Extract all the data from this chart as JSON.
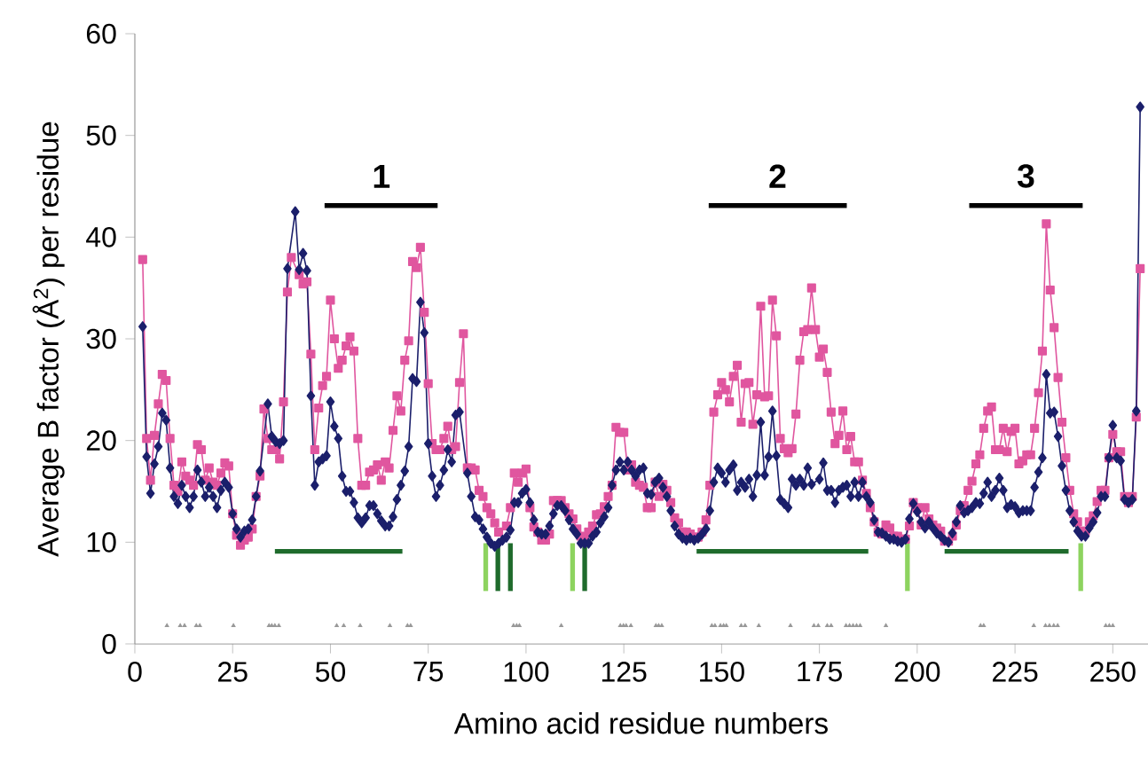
{
  "chart_data": {
    "type": "line",
    "xlabel": "Amino acid residue numbers",
    "ylabel": "Average B factor (Å$^{2}$) per residue",
    "xlim": [
      0,
      259
    ],
    "ylim": [
      0,
      60
    ],
    "xticks": [
      0,
      25,
      50,
      75,
      100,
      125,
      150,
      175,
      200,
      225,
      250
    ],
    "yticks": [
      0,
      10,
      20,
      30,
      40,
      50,
      60
    ],
    "grid": false,
    "annotations": [
      {
        "text": "1",
        "x": 63,
        "y": 43.1
      },
      {
        "text": "2",
        "x": 164.3,
        "y": 43.1
      },
      {
        "text": "3",
        "x": 227.8,
        "y": 43.1
      }
    ],
    "series": [
      {
        "color": "#e0569f",
        "marker": "square",
        "x": [
          2,
          3,
          4,
          5,
          6,
          7,
          8,
          9,
          10,
          11,
          12,
          13,
          14,
          15,
          16,
          17,
          18,
          19,
          20,
          21,
          22,
          23,
          24,
          25,
          26,
          27,
          28,
          29,
          30,
          31,
          32,
          33,
          34,
          35,
          36,
          37,
          38,
          39,
          40,
          42,
          43,
          44,
          45,
          46,
          47,
          48,
          49,
          50,
          51,
          52,
          53,
          54,
          55,
          56,
          57,
          58,
          59,
          60,
          61,
          62,
          63,
          64,
          65,
          66,
          67,
          68,
          69,
          70,
          71,
          72,
          73,
          74,
          75,
          76,
          77,
          78,
          79,
          80,
          81,
          82,
          83,
          84,
          85,
          86,
          87,
          88,
          89,
          90,
          91,
          92,
          93,
          95,
          96,
          97,
          98,
          99,
          100,
          101,
          102,
          103,
          104,
          105,
          106,
          107,
          108,
          109,
          110,
          111,
          112,
          113,
          114,
          115,
          116,
          117,
          118,
          119,
          120,
          121,
          122,
          123,
          124,
          125,
          126,
          127,
          128,
          129,
          130,
          131,
          132,
          133,
          134,
          135,
          136,
          137,
          138,
          139,
          140,
          141,
          142,
          143,
          144,
          145,
          146,
          147,
          148,
          149,
          150,
          151,
          152,
          153,
          154,
          155,
          156,
          157,
          158,
          159,
          160,
          161,
          162,
          163,
          164,
          165,
          166,
          167,
          168,
          169,
          170,
          171,
          172,
          173,
          174,
          175,
          176,
          177,
          178,
          179,
          180,
          181,
          182,
          183,
          184,
          185,
          186,
          187,
          188,
          189,
          190,
          191,
          192,
          193,
          194,
          195,
          196,
          197,
          198,
          199,
          200,
          201,
          202,
          203,
          204,
          205,
          206,
          207,
          208,
          209,
          210,
          211,
          212,
          213,
          214,
          215,
          216,
          217,
          218,
          219,
          220,
          221,
          222,
          223,
          224,
          225,
          226,
          227,
          228,
          229,
          230,
          231,
          232,
          233,
          234,
          235,
          236,
          237,
          238,
          239,
          240,
          241,
          242,
          243,
          244,
          245,
          246,
          247,
          248,
          249,
          250,
          251,
          252,
          253,
          254,
          255,
          256,
          257
        ],
        "values": [
          37.8,
          20.2,
          16.1,
          20.5,
          23.6,
          26.5,
          25.9,
          20.2,
          15.6,
          15.0,
          17.9,
          16.5,
          16.1,
          15.6,
          19.6,
          19.1,
          16.1,
          17.3,
          15.9,
          15.6,
          16.8,
          17.8,
          17.5,
          12.8,
          10.7,
          9.7,
          10.2,
          10.5,
          11.3,
          14.5,
          16.5,
          23.1,
          20.2,
          19.1,
          19.1,
          18.2,
          23.8,
          34.6,
          38.0,
          36.3,
          35.4,
          35.6,
          28.5,
          19.1,
          23.2,
          25.4,
          26.3,
          33.8,
          30.0,
          27.1,
          27.9,
          29.3,
          30.2,
          28.8,
          20.2,
          15.6,
          15.6,
          16.9,
          17.1,
          17.6,
          16.1,
          17.9,
          17.3,
          21.0,
          24.4,
          22.9,
          27.9,
          29.8,
          37.6,
          37.0,
          39.0,
          32.6,
          25.6,
          19.7,
          19.1,
          19.1,
          20.2,
          21.4,
          19.1,
          19.4,
          25.7,
          30.5,
          17.3,
          17.3,
          17.1,
          15.1,
          14.5,
          13.4,
          12.8,
          11.9,
          11.0,
          11.6,
          13.4,
          16.8,
          15.9,
          16.8,
          17.2,
          13.4,
          11.5,
          11.0,
          10.2,
          10.2,
          10.8,
          14.1,
          14.1,
          14.1,
          13.4,
          12.8,
          12.3,
          11.3,
          10.6,
          10.2,
          11.0,
          11.6,
          12.7,
          12.8,
          13.5,
          14.5,
          15.6,
          21.3,
          20.8,
          20.8,
          17.1,
          17.6,
          15.9,
          15.6,
          15.4,
          13.4,
          13.4,
          15.9,
          14.5,
          15.7,
          15.1,
          13.9,
          12.4,
          11.9,
          11.0,
          11.0,
          10.8,
          10.5,
          10.5,
          11.0,
          12.2,
          15.6,
          22.8,
          24.5,
          25.7,
          25.0,
          23.8,
          26.3,
          27.4,
          21.8,
          25.6,
          25.7,
          21.6,
          24.5,
          33.2,
          24.3,
          24.4,
          33.8,
          30.3,
          20.2,
          19.2,
          18.8,
          19.2,
          22.6,
          27.9,
          30.7,
          30.9,
          35.0,
          30.9,
          28.2,
          29.0,
          26.7,
          22.8,
          19.7,
          20.5,
          22.9,
          19.1,
          20.4,
          17.9,
          17.9,
          16.1,
          14.8,
          13.4,
          12.0,
          11.0,
          10.8,
          11.7,
          11.4,
          10.6,
          10.6,
          10.3,
          10.3,
          11.6,
          13.9,
          13.4,
          11.7,
          13.4,
          12.3,
          11.7,
          11.4,
          11.1,
          10.1,
          10.1,
          10.6,
          11.7,
          13.1,
          13.6,
          15.1,
          16.0,
          17.7,
          18.6,
          21.2,
          22.9,
          23.3,
          19.1,
          19.1,
          21.2,
          18.9,
          20.9,
          21.2,
          17.7,
          18.0,
          18.6,
          18.6,
          21.2,
          24.7,
          28.8,
          41.3,
          34.8,
          31.1,
          26.2,
          21.8,
          18.3,
          15.1,
          12.8,
          12.0,
          11.1,
          11.1,
          12.0,
          12.6,
          14.0,
          15.1,
          15.1,
          18.3,
          20.6,
          18.9,
          18.9,
          14.5,
          13.9,
          14.5,
          22.3,
          36.9
        ]
      },
      {
        "color": "#1b1f6b",
        "marker": "diamond",
        "x": [
          2,
          3,
          4,
          5,
          6,
          7,
          8,
          9,
          10,
          11,
          12,
          13,
          14,
          15,
          16,
          17,
          18,
          19,
          20,
          21,
          22,
          23,
          24,
          25,
          26,
          27,
          28,
          29,
          30,
          31,
          32,
          34,
          35,
          36,
          37,
          38,
          39,
          41,
          42,
          43,
          44,
          45,
          46,
          47,
          48,
          49,
          50,
          51,
          52,
          53,
          54,
          55,
          56,
          57,
          58,
          59,
          60,
          61,
          62,
          63,
          64,
          65,
          66,
          67,
          68,
          69,
          70,
          71,
          72,
          73,
          74,
          75,
          76,
          77,
          78,
          79,
          80,
          81,
          82,
          83,
          85,
          86,
          87,
          88,
          89,
          90,
          91,
          92,
          93,
          94,
          95,
          96,
          97,
          98,
          99,
          100,
          101,
          102,
          103,
          104,
          105,
          106,
          107,
          108,
          109,
          110,
          111,
          112,
          113,
          114,
          115,
          116,
          117,
          118,
          119,
          120,
          121,
          122,
          123,
          124,
          125,
          126,
          127,
          128,
          129,
          130,
          131,
          132,
          133,
          134,
          135,
          136,
          137,
          138,
          139,
          140,
          141,
          142,
          143,
          144,
          145,
          146,
          147,
          148,
          149,
          150,
          151,
          152,
          153,
          154,
          155,
          156,
          157,
          158,
          159,
          160,
          161,
          162,
          163,
          164,
          165,
          166,
          167,
          168,
          169,
          170,
          171,
          172,
          173,
          175,
          176,
          177,
          178,
          179,
          180,
          181,
          182,
          183,
          184,
          185,
          186,
          187,
          188,
          189,
          190,
          191,
          192,
          193,
          194,
          195,
          196,
          197,
          198,
          199,
          200,
          201,
          202,
          203,
          204,
          205,
          206,
          207,
          208,
          209,
          210,
          211,
          212,
          213,
          214,
          215,
          216,
          217,
          218,
          219,
          220,
          221,
          222,
          223,
          224,
          225,
          226,
          227,
          228,
          229,
          230,
          231,
          232,
          233,
          234,
          235,
          236,
          237,
          238,
          239,
          240,
          241,
          242,
          243,
          244,
          245,
          246,
          247,
          248,
          249,
          250,
          251,
          252,
          253,
          254,
          255,
          256,
          257
        ],
        "values": [
          31.2,
          18.4,
          14.8,
          17.7,
          19.4,
          22.7,
          22.0,
          17.3,
          14.5,
          13.8,
          15.6,
          14.5,
          13.4,
          14.5,
          17.1,
          15.9,
          14.5,
          15.4,
          14.5,
          13.4,
          15.1,
          15.9,
          15.4,
          12.8,
          11.3,
          10.5,
          11.1,
          11.3,
          12.2,
          14.5,
          17.0,
          23.6,
          20.4,
          19.9,
          19.7,
          20.0,
          36.9,
          42.5,
          36.8,
          38.4,
          36.7,
          24.4,
          15.6,
          17.9,
          18.2,
          18.5,
          23.8,
          21.4,
          20.2,
          16.5,
          15.0,
          15.0,
          13.9,
          12.4,
          11.9,
          12.4,
          13.6,
          13.6,
          12.8,
          12.1,
          11.6,
          11.6,
          12.5,
          14.2,
          15.6,
          17.0,
          19.4,
          26.1,
          25.8,
          33.6,
          30.6,
          19.7,
          16.5,
          14.5,
          15.6,
          17.1,
          19.1,
          17.9,
          22.5,
          22.8,
          16.8,
          14.5,
          12.5,
          12.2,
          11.3,
          10.5,
          9.9,
          9.6,
          9.9,
          10.2,
          10.5,
          11.2,
          13.9,
          13.9,
          14.8,
          15.2,
          13.9,
          12.2,
          11.0,
          10.8,
          10.8,
          11.6,
          12.8,
          13.6,
          13.6,
          13.1,
          12.2,
          11.3,
          10.8,
          9.9,
          9.9,
          9.9,
          10.6,
          11.0,
          11.9,
          12.5,
          13.4,
          15.6,
          17.1,
          17.9,
          17.1,
          17.9,
          17.1,
          16.5,
          17.1,
          17.3,
          14.8,
          14.7,
          15.9,
          16.3,
          15.4,
          14.5,
          13.1,
          11.6,
          10.8,
          10.4,
          10.2,
          10.4,
          10.2,
          10.4,
          10.8,
          11.3,
          13.1,
          15.9,
          17.3,
          16.8,
          15.9,
          17.1,
          17.6,
          15.1,
          15.9,
          15.4,
          16.2,
          14.5,
          16.6,
          21.8,
          16.6,
          18.4,
          22.9,
          18.5,
          14.2,
          13.8,
          13.4,
          16.2,
          15.6,
          16.2,
          15.6,
          17.3,
          15.7,
          16.2,
          17.8,
          15.1,
          15.1,
          13.9,
          15.1,
          15.4,
          15.6,
          14.5,
          15.9,
          14.5,
          15.9,
          14.5,
          13.9,
          12.2,
          11.0,
          10.9,
          10.6,
          10.3,
          10.3,
          10.1,
          10.0,
          10.3,
          12.3,
          13.8,
          13.0,
          12.0,
          11.4,
          12.0,
          11.4,
          10.9,
          10.6,
          10.2,
          10.0,
          10.9,
          12.0,
          13.6,
          12.9,
          13.1,
          13.4,
          13.9,
          13.8,
          14.8,
          15.9,
          14.5,
          15.1,
          16.3,
          15.1,
          13.4,
          13.7,
          13.5,
          12.9,
          13.1,
          13.1,
          13.1,
          15.4,
          16.9,
          18.3,
          26.5,
          22.7,
          22.8,
          20.4,
          17.5,
          15.1,
          13.1,
          12.0,
          11.1,
          10.6,
          10.6,
          11.4,
          12.0,
          12.9,
          14.5,
          14.5,
          18.3,
          21.5,
          18.3,
          18.0,
          14.2,
          13.9,
          14.2,
          22.9,
          52.8
        ]
      },
      {
        "type": "line",
        "color": "#000000",
        "marker": "none",
        "x": [
          48.5,
          77.4
        ],
        "values": [
          43.1,
          43.1
        ]
      },
      {
        "type": "line",
        "color": "#000000",
        "marker": "none",
        "x": [
          146.7,
          182
        ],
        "values": [
          43.1,
          43.1
        ]
      },
      {
        "type": "line",
        "color": "#000000",
        "marker": "none",
        "x": [
          213.3,
          242.3
        ],
        "values": [
          43.1,
          43.1
        ]
      },
      {
        "type": "line",
        "color": "#1f6b2c",
        "marker": "none",
        "x": [
          35.8,
          68.4
        ],
        "values": [
          9.1,
          9.1
        ]
      },
      {
        "type": "line",
        "color": "#1f6b2c",
        "marker": "none",
        "x": [
          143.6,
          187.5
        ],
        "values": [
          9.1,
          9.1
        ]
      },
      {
        "type": "line",
        "color": "#1f6b2c",
        "marker": "none",
        "x": [
          207,
          238.7
        ],
        "values": [
          9.1,
          9.1
        ]
      },
      {
        "type": "line",
        "color": "#8dd35f",
        "marker": "none",
        "x": [
          89.7,
          89.7
        ],
        "values": [
          5.2,
          9.9
        ]
      },
      {
        "type": "line",
        "color": "#1f6b2c",
        "marker": "none",
        "x": [
          92.8,
          92.8
        ],
        "values": [
          5.2,
          9.9
        ]
      },
      {
        "type": "line",
        "color": "#1f6b2c",
        "marker": "none",
        "x": [
          96.0,
          96.0
        ],
        "values": [
          5.2,
          9.9
        ]
      },
      {
        "type": "line",
        "color": "#8dd35f",
        "marker": "none",
        "x": [
          111.9,
          111.9
        ],
        "values": [
          5.2,
          9.9
        ]
      },
      {
        "type": "line",
        "color": "#1f6b2c",
        "marker": "none",
        "x": [
          115.0,
          115.0
        ],
        "values": [
          5.2,
          9.9
        ]
      },
      {
        "type": "line",
        "color": "#8dd35f",
        "marker": "none",
        "x": [
          197.5,
          197.5
        ],
        "values": [
          5.2,
          9.9
        ]
      },
      {
        "type": "line",
        "color": "#8dd35f",
        "marker": "none",
        "x": [
          241.8,
          241.8
        ],
        "values": [
          5.2,
          9.9
        ]
      },
      {
        "type": "scatter",
        "color": "#999999",
        "marker": "triangle",
        "x": [
          8.2,
          11.6,
          12.7,
          15.7,
          16.6,
          25.2,
          34.3,
          35,
          35.8,
          36.8,
          51.6,
          53.4,
          57.6,
          65.2,
          69.7,
          70.5,
          96.8,
          97.6,
          98.3,
          109,
          124.1,
          124.9,
          125.6,
          126.8,
          133.2,
          133.9,
          134.7,
          147.5,
          148.3,
          149.7,
          150.5,
          151.2,
          155,
          156,
          159.5,
          167.6,
          173.6,
          174.7,
          177,
          178,
          181.8,
          182.7,
          183.6,
          184.5,
          185.4,
          192,
          216.2,
          217,
          229.8,
          232.8,
          233.8,
          234.9,
          235.9,
          248.2,
          249.1,
          250
        ],
        "values": [
          1.8,
          1.8,
          1.8,
          1.8,
          1.8,
          1.8,
          1.8,
          1.8,
          1.8,
          1.8,
          1.8,
          1.8,
          1.8,
          1.8,
          1.8,
          1.8,
          1.8,
          1.8,
          1.8,
          1.8,
          1.8,
          1.8,
          1.8,
          1.8,
          1.8,
          1.8,
          1.8,
          1.8,
          1.8,
          1.8,
          1.8,
          1.8,
          1.8,
          1.8,
          1.8,
          1.8,
          1.8,
          1.8,
          1.8,
          1.8,
          1.8,
          1.8,
          1.8,
          1.8,
          1.8,
          1.8,
          1.8,
          1.8,
          1.8,
          1.8,
          1.8,
          1.8,
          1.8,
          1.8,
          1.8,
          1.8
        ]
      }
    ]
  }
}
